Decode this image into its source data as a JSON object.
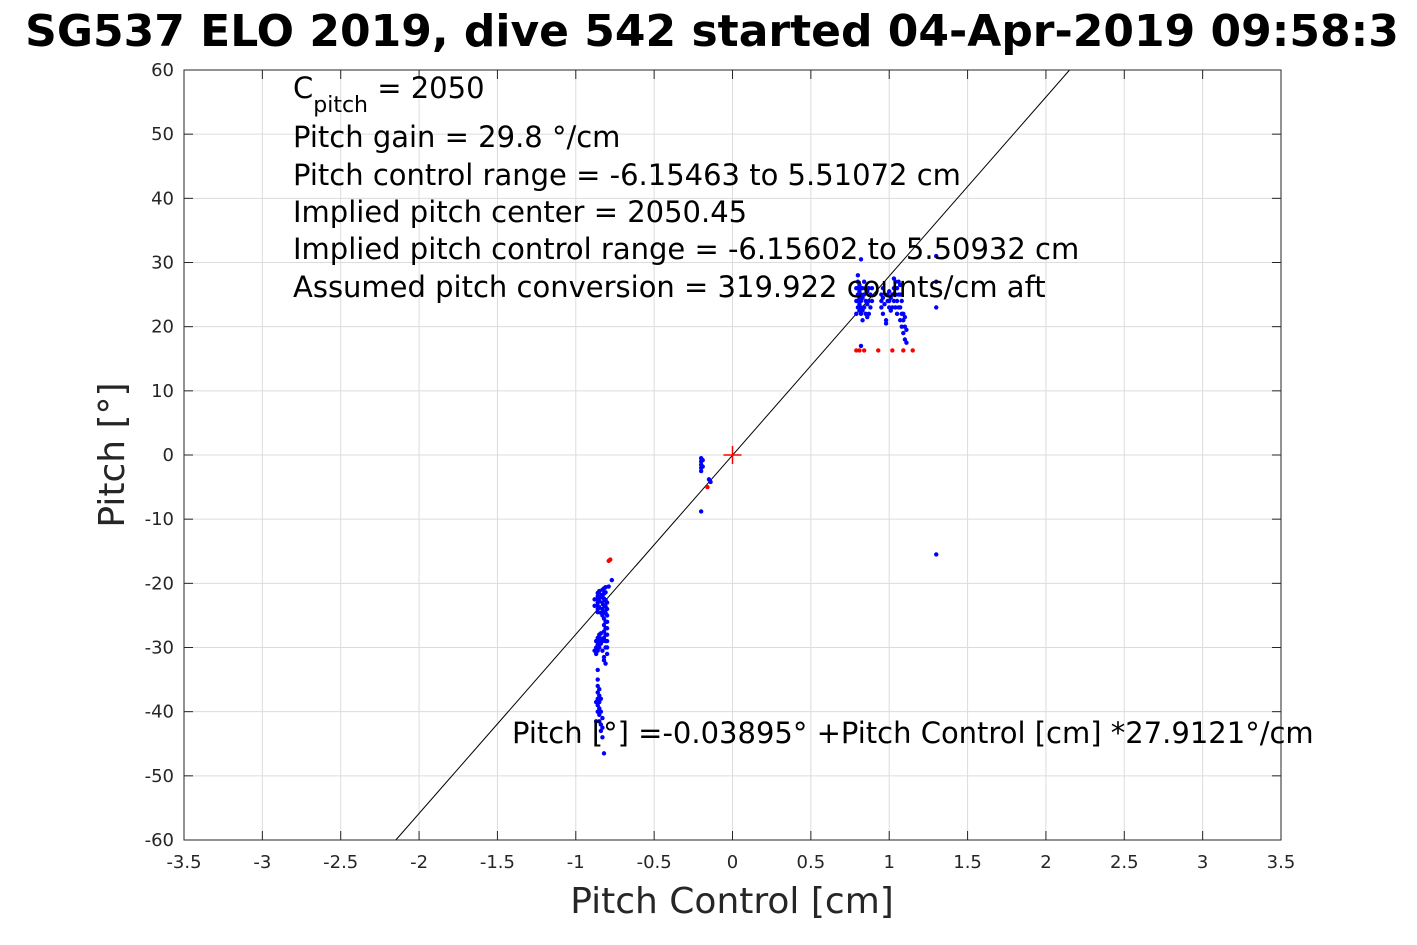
{
  "chart_data": {
    "type": "scatter",
    "title": "SG537 ELO 2019, dive 542 started 04-Apr-2019 09:58:3",
    "xlabel": "Pitch Control [cm]",
    "ylabel": "Pitch [°]",
    "xlim": [
      -3.5,
      3.5
    ],
    "ylim": [
      -60,
      60
    ],
    "xticks": [
      -3.5,
      -3,
      -2.5,
      -2,
      -1.5,
      -1,
      -0.5,
      0,
      0.5,
      1,
      1.5,
      2,
      2.5,
      3,
      3.5
    ],
    "xtick_labels": [
      "-3.5",
      "-3",
      "-2.5",
      "-2",
      "-1.5",
      "-1",
      "-0.5",
      "0",
      "0.5",
      "1",
      "1.5",
      "2",
      "2.5",
      "3",
      "3.5"
    ],
    "yticks": [
      -60,
      -50,
      -40,
      -30,
      -20,
      -10,
      0,
      10,
      20,
      30,
      40,
      50,
      60
    ],
    "ytick_labels": [
      "-60",
      "-50",
      "-40",
      "-30",
      "-20",
      "-10",
      "0",
      "10",
      "20",
      "30",
      "40",
      "50",
      "60"
    ],
    "grid": true,
    "annotations": {
      "c_pitch": {
        "base": "C",
        "subscript": "pitch",
        "rest": " = 2050"
      },
      "lines": [
        "Pitch gain = 29.8 °/cm",
        "Pitch control range = -6.15463 to 5.51072 cm",
        "Implied pitch center = 2050.45",
        "Implied pitch control range = -6.15602 to 5.50932 cm",
        "Assumed pitch conversion = 319.922 counts/cm aft"
      ],
      "fit_equation": "Pitch [°] =-0.03895° +Pitch Control [cm] *27.9121°/cm"
    },
    "fit_line": {
      "intercept": -0.03895,
      "slope": 27.9121,
      "color": "#000000"
    },
    "center_marker": {
      "x": 0,
      "y": 0,
      "color": "#ff0000",
      "shape": "plus"
    },
    "series": [
      {
        "color": "#0000ff",
        "points": [
          [
            -0.86,
            -21.5
          ],
          [
            -0.86,
            -22
          ],
          [
            -0.86,
            -22.5
          ],
          [
            -0.86,
            -23
          ],
          [
            -0.86,
            -23.5
          ],
          [
            -0.86,
            -24
          ],
          [
            -0.86,
            -24.5
          ],
          [
            -0.85,
            -21.2
          ],
          [
            -0.85,
            -22.8
          ],
          [
            -0.85,
            -23.8
          ],
          [
            -0.84,
            -22.2
          ],
          [
            -0.84,
            -24.6
          ],
          [
            -0.84,
            -21.8
          ],
          [
            -0.83,
            -21
          ],
          [
            -0.83,
            -22
          ],
          [
            -0.83,
            -23
          ],
          [
            -0.83,
            -24
          ],
          [
            -0.83,
            -25
          ],
          [
            -0.82,
            -20.8
          ],
          [
            -0.82,
            -21.6
          ],
          [
            -0.82,
            -22.4
          ],
          [
            -0.82,
            -23.4
          ],
          [
            -0.82,
            -24.4
          ],
          [
            -0.81,
            -20.6
          ],
          [
            -0.81,
            -21.4
          ],
          [
            -0.81,
            -22.6
          ],
          [
            -0.81,
            -23.6
          ],
          [
            -0.81,
            -24.6
          ],
          [
            -0.8,
            -23
          ],
          [
            -0.8,
            -24
          ],
          [
            -0.8,
            -25
          ],
          [
            -0.8,
            -26
          ],
          [
            -0.82,
            -25.5
          ],
          [
            -0.82,
            -26.5
          ],
          [
            -0.82,
            -27.5
          ],
          [
            -0.82,
            -28.5
          ],
          [
            -0.81,
            -26
          ],
          [
            -0.81,
            -27
          ],
          [
            -0.81,
            -28
          ],
          [
            -0.81,
            -29
          ],
          [
            -0.81,
            -30
          ],
          [
            -0.8,
            -27
          ],
          [
            -0.8,
            -28
          ],
          [
            -0.8,
            -29
          ],
          [
            -0.8,
            -30
          ],
          [
            -0.8,
            -31
          ],
          [
            -0.83,
            -29
          ],
          [
            -0.83,
            -30.5
          ],
          [
            -0.82,
            -31.5
          ],
          [
            -0.84,
            -27.8
          ],
          [
            -0.84,
            -28.6
          ],
          [
            -0.84,
            -29.4
          ],
          [
            -0.85,
            -28
          ],
          [
            -0.85,
            -29
          ],
          [
            -0.85,
            -30
          ],
          [
            -0.86,
            -28.5
          ],
          [
            -0.86,
            -29.5
          ],
          [
            -0.86,
            -30.5
          ],
          [
            -0.87,
            -29
          ],
          [
            -0.87,
            -30
          ],
          [
            -0.87,
            -31
          ],
          [
            -0.82,
            -32
          ],
          [
            -0.81,
            -32.5
          ],
          [
            -0.86,
            -33.5
          ],
          [
            -0.86,
            -35
          ],
          [
            -0.86,
            -36
          ],
          [
            -0.86,
            -37
          ],
          [
            -0.86,
            -38
          ],
          [
            -0.86,
            -39
          ],
          [
            -0.86,
            -40
          ],
          [
            -0.85,
            -36.5
          ],
          [
            -0.85,
            -37.5
          ],
          [
            -0.85,
            -38.5
          ],
          [
            -0.85,
            -39.5
          ],
          [
            -0.85,
            -40.5
          ],
          [
            -0.85,
            -41.5
          ],
          [
            -0.84,
            -38
          ],
          [
            -0.84,
            -40
          ],
          [
            -0.84,
            -42
          ],
          [
            -0.84,
            -43
          ],
          [
            -0.83,
            -41
          ],
          [
            -0.83,
            -42.5
          ],
          [
            -0.83,
            -44
          ],
          [
            -0.87,
            -38.5
          ],
          [
            -0.87,
            -41.5
          ],
          [
            -0.82,
            -46.5
          ],
          [
            -0.88,
            -30.5
          ],
          [
            -0.88,
            -22.5
          ],
          [
            -0.88,
            -23.5
          ],
          [
            -0.77,
            -19.5
          ],
          [
            -0.79,
            -20.5
          ],
          [
            -0.2,
            -0.5
          ],
          [
            -0.2,
            -1
          ],
          [
            -0.2,
            -1.5
          ],
          [
            -0.2,
            -2
          ],
          [
            -0.2,
            -2.5
          ],
          [
            -0.19,
            -0.8
          ],
          [
            -0.19,
            -1.8
          ],
          [
            -0.15,
            -3.8
          ],
          [
            -0.14,
            -4.2
          ],
          [
            -0.2,
            -8.8
          ],
          [
            0.8,
            23
          ],
          [
            0.8,
            24
          ],
          [
            0.8,
            25
          ],
          [
            0.8,
            26
          ],
          [
            0.8,
            27
          ],
          [
            0.81,
            22.5
          ],
          [
            0.81,
            23.5
          ],
          [
            0.81,
            24.5
          ],
          [
            0.81,
            25.5
          ],
          [
            0.81,
            26.5
          ],
          [
            0.82,
            22
          ],
          [
            0.82,
            23
          ],
          [
            0.82,
            24
          ],
          [
            0.82,
            25
          ],
          [
            0.82,
            26
          ],
          [
            0.83,
            21
          ],
          [
            0.83,
            22.5
          ],
          [
            0.83,
            24.5
          ],
          [
            0.83,
            26
          ],
          [
            0.84,
            23
          ],
          [
            0.84,
            25
          ],
          [
            0.84,
            27
          ],
          [
            0.85,
            22
          ],
          [
            0.85,
            24
          ],
          [
            0.85,
            26
          ],
          [
            0.86,
            21.5
          ],
          [
            0.86,
            23.5
          ],
          [
            0.86,
            25.5
          ],
          [
            0.87,
            22
          ],
          [
            0.87,
            24
          ],
          [
            0.87,
            26
          ],
          [
            0.88,
            23
          ],
          [
            0.88,
            25
          ],
          [
            0.89,
            24
          ],
          [
            0.89,
            26
          ],
          [
            0.82,
            30.5
          ],
          [
            0.8,
            28
          ],
          [
            0.79,
            22
          ],
          [
            0.79,
            24
          ],
          [
            0.79,
            26
          ],
          [
            0.95,
            23
          ],
          [
            0.95,
            24
          ],
          [
            0.95,
            25
          ],
          [
            0.96,
            22
          ],
          [
            0.96,
            24.5
          ],
          [
            0.96,
            26
          ],
          [
            0.97,
            23.5
          ],
          [
            0.98,
            21
          ],
          [
            0.98,
            20.5
          ],
          [
            0.99,
            24
          ],
          [
            0.99,
            25
          ],
          [
            1.0,
            23
          ],
          [
            1.0,
            24
          ],
          [
            1.0,
            25.5
          ],
          [
            1.01,
            22.5
          ],
          [
            1.01,
            24.5
          ],
          [
            1.02,
            23
          ],
          [
            1.02,
            25
          ],
          [
            1.03,
            24
          ],
          [
            1.03,
            26
          ],
          [
            1.04,
            23
          ],
          [
            1.04,
            25
          ],
          [
            1.04,
            27
          ],
          [
            1.05,
            22
          ],
          [
            1.05,
            24
          ],
          [
            1.05,
            26
          ],
          [
            1.06,
            23
          ],
          [
            1.06,
            25
          ],
          [
            1.06,
            27
          ],
          [
            1.07,
            21
          ],
          [
            1.07,
            23
          ],
          [
            1.07,
            25
          ],
          [
            1.07,
            26.5
          ],
          [
            1.08,
            20
          ],
          [
            1.08,
            22
          ],
          [
            1.08,
            24
          ],
          [
            1.09,
            19
          ],
          [
            1.09,
            21
          ],
          [
            1.09,
            22
          ],
          [
            1.1,
            18
          ],
          [
            1.1,
            20
          ],
          [
            1.1,
            21.5
          ],
          [
            1.11,
            17.5
          ],
          [
            1.11,
            19.5
          ],
          [
            1.03,
            27.5
          ],
          [
            0.82,
            17
          ],
          [
            1.3,
            31
          ],
          [
            1.3,
            27
          ],
          [
            1.3,
            23
          ],
          [
            1.3,
            -15.5
          ]
        ]
      },
      {
        "color": "#ff0000",
        "points": [
          [
            -0.79,
            -16.5
          ],
          [
            -0.78,
            -16.3
          ],
          [
            -0.16,
            -5
          ],
          [
            0.79,
            16.3
          ],
          [
            0.81,
            16.3
          ],
          [
            0.84,
            16.3
          ],
          [
            0.93,
            16.3
          ],
          [
            1.02,
            16.3
          ],
          [
            1.09,
            16.3
          ],
          [
            1.15,
            16.3
          ]
        ]
      }
    ]
  }
}
